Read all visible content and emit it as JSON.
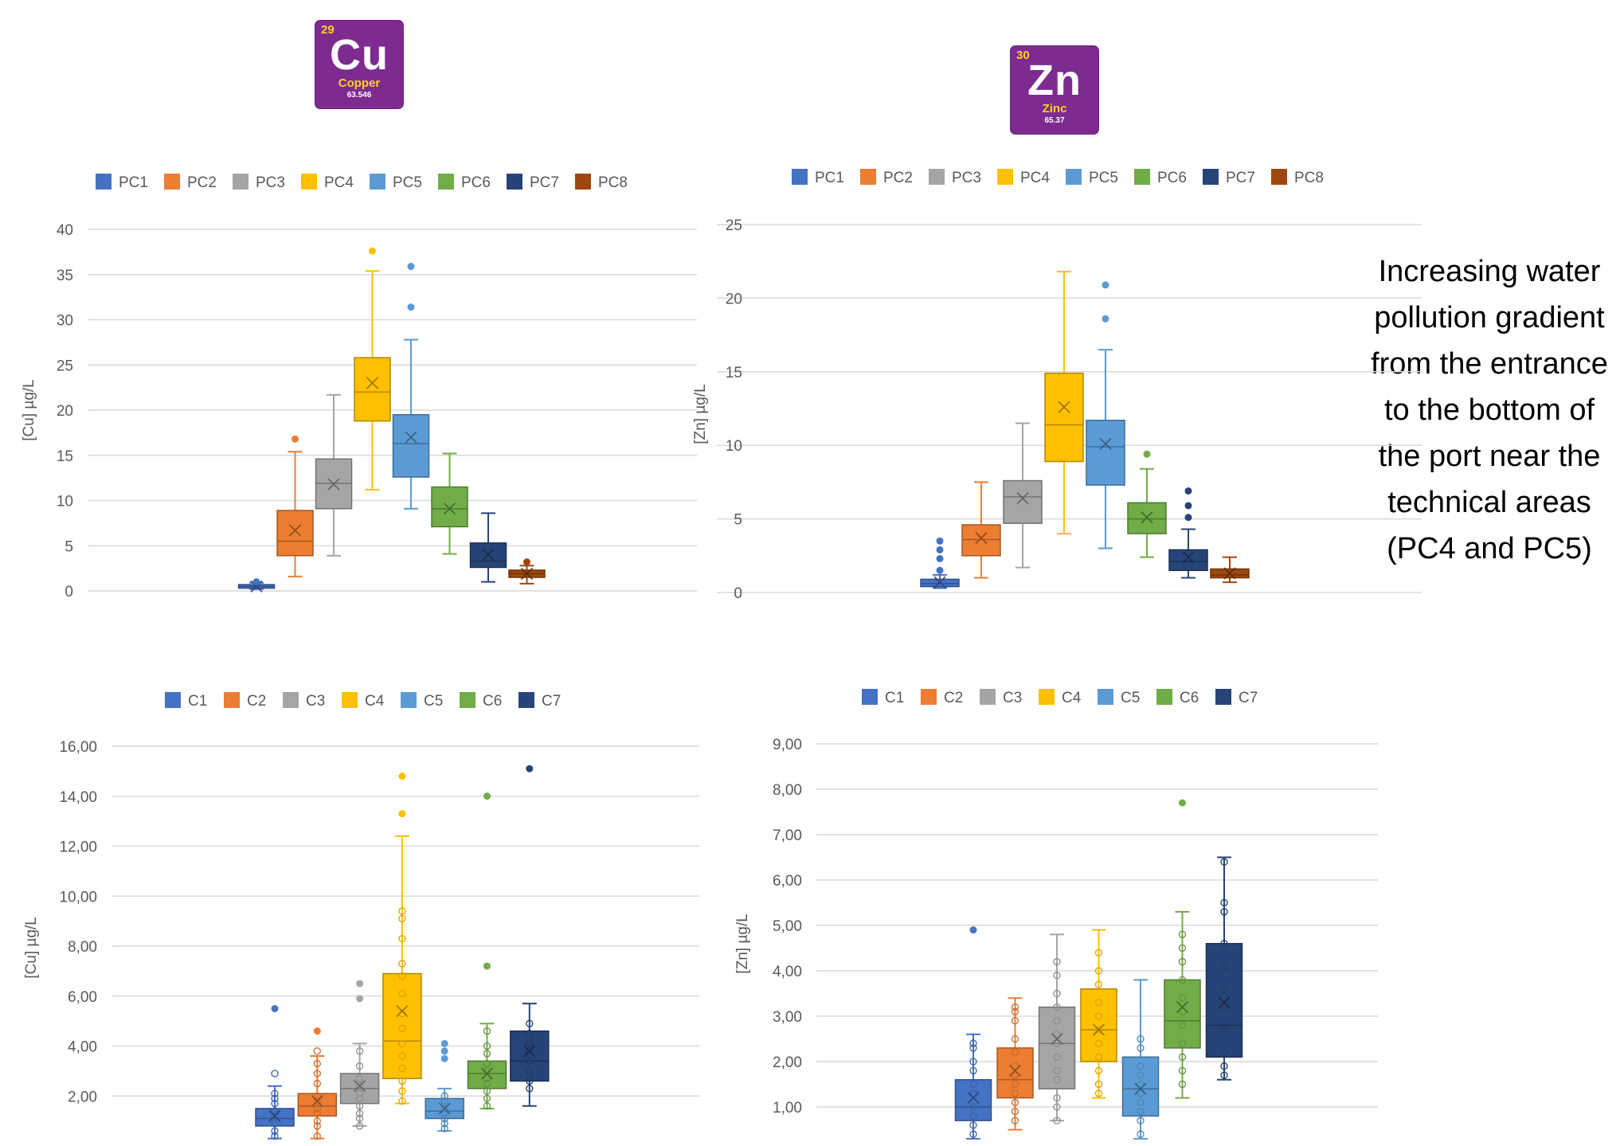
{
  "tiles": [
    {
      "number": "29",
      "symbol": "Cu",
      "name": "Copper",
      "weight": "63.546"
    },
    {
      "number": "30",
      "symbol": "Zn",
      "name": "Zinc",
      "weight": "65.37"
    }
  ],
  "note": [
    "Increasing water",
    "pollution gradient",
    "from the entrance",
    "to the bottom of",
    "the port near the",
    "technical areas",
    "(PC4 and PC5)"
  ],
  "colors": {
    "c1": "#4472c4",
    "c2": "#ed7d31",
    "c3": "#a5a5a5",
    "c4": "#ffc000",
    "c5": "#5b9bd5",
    "c6": "#70ad47",
    "c7": "#264478",
    "c8": "#9e480e",
    "grid": "#d9d9d9",
    "axis": "#bfbfbf"
  },
  "chart_data": [
    {
      "type": "box",
      "ylabel": "[Cu] µg/L",
      "ylim": [
        0,
        40
      ],
      "yticks": [
        "0",
        "5",
        "10",
        "15",
        "20",
        "25",
        "30",
        "35",
        "40"
      ],
      "legend_position": "top",
      "series": [
        {
          "name": "PC1",
          "min": 0.2,
          "q1": 0.3,
          "median": 0.5,
          "q3": 0.7,
          "max": 0.9,
          "mean": 0.5,
          "outliers": [
            1.0
          ]
        },
        {
          "name": "PC2",
          "min": 1.6,
          "q1": 3.9,
          "median": 5.5,
          "q3": 8.9,
          "max": 15.4,
          "mean": 6.7,
          "outliers": [
            16.8
          ]
        },
        {
          "name": "PC3",
          "min": 3.9,
          "q1": 9.1,
          "median": 11.9,
          "q3": 14.6,
          "max": 21.7,
          "mean": 11.8,
          "outliers": []
        },
        {
          "name": "PC4",
          "min": 11.2,
          "q1": 18.8,
          "median": 22.0,
          "q3": 25.8,
          "max": 35.4,
          "mean": 23.0,
          "outliers": [
            37.6
          ]
        },
        {
          "name": "PC5",
          "min": 9.1,
          "q1": 12.6,
          "median": 16.3,
          "q3": 19.5,
          "max": 27.8,
          "mean": 17.0,
          "outliers": [
            31.4,
            35.9
          ]
        },
        {
          "name": "PC6",
          "min": 4.1,
          "q1": 7.1,
          "median": 9.1,
          "q3": 11.5,
          "max": 15.2,
          "mean": 9.1,
          "outliers": []
        },
        {
          "name": "PC7",
          "min": 1.0,
          "q1": 2.6,
          "median": 3.3,
          "q3": 5.3,
          "max": 8.6,
          "mean": 4.0,
          "outliers": []
        },
        {
          "name": "PC8",
          "min": 0.8,
          "q1": 1.5,
          "median": 1.9,
          "q3": 2.3,
          "max": 2.8,
          "mean": 1.9,
          "outliers": [
            3.2
          ]
        }
      ]
    },
    {
      "type": "box",
      "ylabel": "[Zn] µg/L",
      "ylim": [
        0,
        25
      ],
      "yticks": [
        "0",
        "5",
        "10",
        "15",
        "20",
        "25"
      ],
      "legend_position": "top",
      "series": [
        {
          "name": "PC1",
          "min": 0.3,
          "q1": 0.4,
          "median": 0.6,
          "q3": 0.9,
          "max": 1.2,
          "mean": 0.7,
          "outliers": [
            1.5,
            2.3,
            2.9,
            3.5
          ]
        },
        {
          "name": "PC2",
          "min": 1.0,
          "q1": 2.5,
          "median": 3.6,
          "q3": 4.6,
          "max": 7.5,
          "mean": 3.7,
          "outliers": []
        },
        {
          "name": "PC3",
          "min": 1.7,
          "q1": 4.7,
          "median": 6.5,
          "q3": 7.6,
          "max": 11.5,
          "mean": 6.4,
          "outliers": []
        },
        {
          "name": "PC4",
          "min": 4.0,
          "q1": 8.9,
          "median": 11.4,
          "q3": 14.9,
          "max": 21.8,
          "mean": 12.6,
          "outliers": []
        },
        {
          "name": "PC5",
          "min": 3.0,
          "q1": 7.3,
          "median": 9.9,
          "q3": 11.7,
          "max": 16.5,
          "mean": 10.1,
          "outliers": [
            18.6,
            20.9
          ]
        },
        {
          "name": "PC6",
          "min": 2.4,
          "q1": 4.0,
          "median": 5.0,
          "q3": 6.1,
          "max": 8.4,
          "mean": 5.1,
          "outliers": [
            9.4
          ]
        },
        {
          "name": "PC7",
          "min": 1.0,
          "q1": 1.5,
          "median": 2.1,
          "q3": 2.9,
          "max": 4.3,
          "mean": 2.4,
          "outliers": [
            5.1,
            5.9,
            6.9
          ]
        },
        {
          "name": "PC8",
          "min": 0.7,
          "q1": 1.0,
          "median": 1.2,
          "q3": 1.6,
          "max": 2.4,
          "mean": 1.3,
          "outliers": []
        }
      ]
    },
    {
      "type": "box",
      "ylabel": "[Cu] µg/L",
      "ylim": [
        0,
        16
      ],
      "yticks": [
        "2,00",
        "4,00",
        "6,00",
        "8,00",
        "10,00",
        "12,00",
        "14,00",
        "16,00"
      ],
      "legend_position": "top",
      "series": [
        {
          "name": "C1",
          "min": 0.3,
          "q1": 0.8,
          "median": 1.1,
          "q3": 1.5,
          "max": 2.4,
          "mean": 1.2,
          "points": [
            0.4,
            0.6,
            0.9,
            1.2,
            1.4,
            1.7,
            1.9,
            2.1,
            2.9
          ],
          "outliers": [
            5.5
          ]
        },
        {
          "name": "C2",
          "min": 0.3,
          "q1": 1.2,
          "median": 1.6,
          "q3": 2.1,
          "max": 3.6,
          "mean": 1.8,
          "points": [
            0.4,
            0.8,
            1.0,
            1.3,
            1.5,
            1.8,
            2.0,
            2.5,
            2.9,
            3.3,
            3.8
          ],
          "outliers": [
            4.6
          ]
        },
        {
          "name": "C3",
          "min": 0.8,
          "q1": 1.7,
          "median": 2.3,
          "q3": 2.9,
          "max": 4.1,
          "mean": 2.4,
          "points": [
            0.8,
            1.1,
            1.3,
            1.6,
            1.9,
            2.1,
            2.4,
            2.7,
            3.2,
            3.8
          ],
          "outliers": [
            5.9,
            6.5
          ]
        },
        {
          "name": "C4",
          "min": 1.7,
          "q1": 2.7,
          "median": 4.2,
          "q3": 6.9,
          "max": 12.4,
          "mean": 5.4,
          "points": [
            1.8,
            2.2,
            2.6,
            3.1,
            3.6,
            4.1,
            4.7,
            5.3,
            6.1,
            6.8,
            7.3,
            8.3,
            9.1,
            9.4
          ],
          "outliers": [
            13.3,
            14.8
          ]
        },
        {
          "name": "C5",
          "min": 0.6,
          "q1": 1.1,
          "median": 1.4,
          "q3": 1.9,
          "max": 2.3,
          "mean": 1.5,
          "points": [
            0.7,
            0.9,
            1.1,
            1.3,
            1.5,
            1.8,
            2.0
          ],
          "outliers": [
            3.5,
            3.8,
            4.1
          ]
        },
        {
          "name": "C6",
          "min": 1.5,
          "q1": 2.3,
          "median": 2.9,
          "q3": 3.4,
          "max": 4.9,
          "mean": 2.9,
          "points": [
            1.6,
            1.9,
            2.2,
            2.5,
            2.7,
            3.0,
            3.3,
            3.7,
            4.0,
            4.6
          ],
          "outliers": [
            7.2,
            14.0
          ]
        },
        {
          "name": "C7",
          "min": 1.6,
          "q1": 2.6,
          "median": 3.4,
          "q3": 4.6,
          "max": 5.7,
          "mean": 3.8,
          "points": [
            2.3,
            2.6,
            3.0,
            3.4,
            3.8,
            4.1,
            4.5,
            4.9
          ],
          "outliers": [
            15.1
          ]
        }
      ]
    },
    {
      "type": "box",
      "ylabel": "[Zn] µg/L",
      "ylim": [
        0,
        9
      ],
      "yticks": [
        "1,00",
        "2,00",
        "3,00",
        "4,00",
        "5,00",
        "6,00",
        "7,00",
        "8,00",
        "9,00"
      ],
      "legend_position": "top",
      "series": [
        {
          "name": "C1",
          "min": 0.3,
          "q1": 0.7,
          "median": 1.0,
          "q3": 1.6,
          "max": 2.6,
          "mean": 1.2,
          "points": [
            0.4,
            0.6,
            0.8,
            1.0,
            1.3,
            1.5,
            1.8,
            2.0,
            2.3,
            2.4
          ],
          "outliers": [
            4.9
          ]
        },
        {
          "name": "C2",
          "min": 0.5,
          "q1": 1.2,
          "median": 1.6,
          "q3": 2.3,
          "max": 3.4,
          "mean": 1.8,
          "points": [
            0.7,
            0.9,
            1.1,
            1.3,
            1.5,
            1.7,
            1.9,
            2.2,
            2.5,
            2.9,
            3.1,
            3.2
          ],
          "outliers": []
        },
        {
          "name": "C3",
          "min": 0.7,
          "q1": 1.4,
          "median": 2.4,
          "q3": 3.2,
          "max": 4.8,
          "mean": 2.5,
          "points": [
            0.7,
            1.0,
            1.2,
            1.6,
            1.8,
            2.1,
            2.4,
            2.6,
            2.9,
            3.2,
            3.5,
            3.9,
            4.2
          ],
          "outliers": []
        },
        {
          "name": "C4",
          "min": 1.2,
          "q1": 2.0,
          "median": 2.7,
          "q3": 3.6,
          "max": 4.9,
          "mean": 2.7,
          "points": [
            1.3,
            1.5,
            1.8,
            2.1,
            2.4,
            2.7,
            3.0,
            3.3,
            3.7,
            4.0,
            4.4
          ],
          "outliers": []
        },
        {
          "name": "C5",
          "min": 0.3,
          "q1": 0.8,
          "median": 1.4,
          "q3": 2.1,
          "max": 3.8,
          "mean": 1.4,
          "points": [
            0.4,
            0.7,
            0.9,
            1.1,
            1.3,
            1.5,
            1.7,
            1.9,
            2.3,
            2.5
          ],
          "outliers": []
        },
        {
          "name": "C6",
          "min": 1.2,
          "q1": 2.3,
          "median": 2.9,
          "q3": 3.8,
          "max": 5.3,
          "mean": 3.2,
          "points": [
            1.5,
            1.8,
            2.1,
            2.4,
            2.8,
            3.1,
            3.4,
            3.8,
            4.2,
            4.5,
            4.8
          ],
          "outliers": [
            7.7
          ]
        },
        {
          "name": "C7",
          "min": 1.6,
          "q1": 2.1,
          "median": 2.8,
          "q3": 4.6,
          "max": 6.5,
          "mean": 3.3,
          "points": [
            1.7,
            1.9,
            2.2,
            2.7,
            3.2,
            3.6,
            4.1,
            4.6,
            5.3,
            5.5,
            6.4
          ],
          "outliers": []
        }
      ]
    }
  ]
}
